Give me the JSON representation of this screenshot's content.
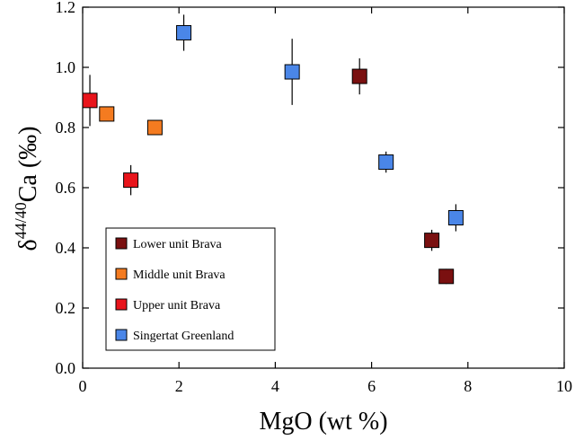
{
  "chart_data": {
    "type": "scatter",
    "xlabel": "MgO (wt %)",
    "ylabel": {
      "prefix": "δ",
      "superscript": "44/40",
      "main": "Ca (‰)"
    },
    "xlim": [
      0,
      10
    ],
    "ylim": [
      0,
      1.2
    ],
    "xticks": [
      0,
      2,
      4,
      6,
      8,
      10
    ],
    "yticks": [
      0.0,
      0.2,
      0.4,
      0.6,
      0.8,
      1.0,
      1.2
    ],
    "ytick_labels": [
      "0.0",
      "0.2",
      "0.4",
      "0.6",
      "0.8",
      "1.0",
      "1.2"
    ],
    "xtick_labels": [
      "0",
      "2",
      "4",
      "6",
      "8",
      "10"
    ],
    "grid": false,
    "legend_position": "bottom-left",
    "series": [
      {
        "name": "Lower unit Brava",
        "color": "#7a1010",
        "points": [
          {
            "x": 5.75,
            "y": 0.97,
            "err": 0.06
          },
          {
            "x": 7.25,
            "y": 0.425,
            "err": 0.035
          },
          {
            "x": 7.55,
            "y": 0.305,
            "err": 0.025
          }
        ]
      },
      {
        "name": "Middle unit Brava",
        "color": "#f47b20",
        "points": [
          {
            "x": 0.5,
            "y": 0.845,
            "err": 0.0
          },
          {
            "x": 1.5,
            "y": 0.8,
            "err": 0.0
          }
        ]
      },
      {
        "name": "Upper unit Brava",
        "color": "#e8141b",
        "points": [
          {
            "x": 0.15,
            "y": 0.89,
            "err": 0.085
          },
          {
            "x": 1.0,
            "y": 0.625,
            "err": 0.05
          }
        ]
      },
      {
        "name": "Singertat Greenland",
        "color": "#4a86e8",
        "points": [
          {
            "x": 2.1,
            "y": 1.115,
            "err": 0.06
          },
          {
            "x": 4.35,
            "y": 0.985,
            "err": 0.11
          },
          {
            "x": 6.3,
            "y": 0.685,
            "err": 0.035
          },
          {
            "x": 7.75,
            "y": 0.5,
            "err": 0.045
          }
        ]
      }
    ]
  }
}
